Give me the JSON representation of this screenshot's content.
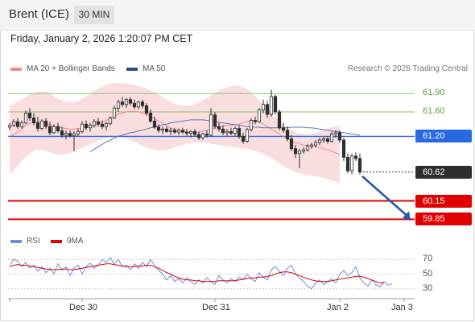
{
  "header": {
    "instrument": "Brent (ICE)",
    "timeframe": "30 MIN"
  },
  "datetime": "Friday, January 2, 2026 1:20:07 PM CET",
  "legend": {
    "bb_label": "MA 20 + Bollinger Bands",
    "ma50_label": "MA 50",
    "copyright": "Research © 2026 Trading Central"
  },
  "colors": {
    "bb_band": "#fadadb",
    "ma20": "#f08a8a",
    "ma50": "#5b78b6",
    "candle": "#2f2f2f",
    "green_level": "#8cc26a",
    "blue_level": "#2a6ae0",
    "red_level": "#e00000",
    "current": "#2e2e2e",
    "arrow": "#2a56a8",
    "rsi": "#6b8fdc",
    "rsi_ma": "#e00000"
  },
  "levels": [
    {
      "name": "level-61-90",
      "value": 61.9,
      "label": "61.90",
      "kind": "green"
    },
    {
      "name": "level-61-60",
      "value": 61.6,
      "label": "61.60",
      "kind": "green"
    },
    {
      "name": "level-61-20",
      "value": 61.2,
      "label": "61.20",
      "kind": "blue"
    },
    {
      "name": "level-60-62",
      "value": 60.62,
      "label": "60.62",
      "kind": "current"
    },
    {
      "name": "level-60-15",
      "value": 60.15,
      "label": "60.15",
      "kind": "red"
    },
    {
      "name": "level-59-85",
      "value": 59.85,
      "label": "59.85",
      "kind": "red"
    }
  ],
  "rsi_panel": {
    "rsi_label": "RSI",
    "ma_label": "9MA",
    "ticks": [
      {
        "label": "70",
        "value": 70
      },
      {
        "label": "50",
        "value": 50
      },
      {
        "label": "30",
        "value": 30
      }
    ]
  },
  "x_axis": {
    "labels": [
      {
        "label": "Dec 30",
        "index": 18
      },
      {
        "label": "Dec 31",
        "index": 51
      },
      {
        "label": "Jan 2",
        "index": 82
      },
      {
        "label": "Jan 3",
        "index": 98
      }
    ]
  },
  "chart_data": {
    "type": "candlestick",
    "title": "",
    "ylim": [
      59.75,
      62.15
    ],
    "rsi_ylim": [
      20,
      80
    ],
    "candles": [
      [
        61.35,
        61.42,
        61.3,
        61.38
      ],
      [
        61.38,
        61.48,
        61.35,
        61.44
      ],
      [
        61.44,
        61.5,
        61.32,
        61.36
      ],
      [
        61.36,
        61.46,
        61.33,
        61.42
      ],
      [
        61.42,
        61.62,
        61.4,
        61.58
      ],
      [
        61.58,
        61.66,
        61.45,
        61.5
      ],
      [
        61.5,
        61.58,
        61.38,
        61.42
      ],
      [
        61.42,
        61.52,
        61.28,
        61.33
      ],
      [
        61.33,
        61.48,
        61.3,
        61.45
      ],
      [
        61.45,
        61.5,
        61.32,
        61.36
      ],
      [
        61.36,
        61.44,
        61.22,
        61.26
      ],
      [
        61.26,
        61.4,
        61.24,
        61.36
      ],
      [
        61.36,
        61.42,
        61.26,
        61.29
      ],
      [
        61.29,
        61.36,
        61.18,
        61.22
      ],
      [
        61.22,
        61.3,
        61.15,
        61.25
      ],
      [
        61.25,
        61.3,
        61.18,
        61.21
      ],
      [
        61.21,
        61.28,
        60.96,
        61.24
      ],
      [
        61.24,
        61.32,
        61.2,
        61.28
      ],
      [
        61.28,
        61.45,
        61.25,
        61.4
      ],
      [
        61.4,
        61.46,
        61.3,
        61.34
      ],
      [
        61.34,
        61.42,
        61.28,
        61.38
      ],
      [
        61.38,
        61.48,
        61.34,
        61.44
      ],
      [
        61.44,
        61.5,
        61.36,
        61.4
      ],
      [
        61.4,
        61.46,
        61.32,
        61.36
      ],
      [
        61.36,
        61.44,
        61.3,
        61.41
      ],
      [
        61.41,
        61.52,
        61.38,
        61.5
      ],
      [
        61.5,
        61.7,
        61.48,
        61.66
      ],
      [
        61.66,
        61.8,
        61.6,
        61.76
      ],
      [
        61.76,
        61.84,
        61.68,
        61.72
      ],
      [
        61.72,
        61.82,
        61.66,
        61.8
      ],
      [
        61.8,
        61.84,
        61.7,
        61.74
      ],
      [
        61.74,
        61.8,
        61.64,
        61.68
      ],
      [
        61.68,
        61.78,
        61.64,
        61.76
      ],
      [
        61.76,
        61.8,
        61.66,
        61.7
      ],
      [
        61.7,
        61.74,
        61.54,
        61.58
      ],
      [
        61.58,
        61.64,
        61.42,
        61.45
      ],
      [
        61.45,
        61.52,
        61.32,
        61.35
      ],
      [
        61.35,
        61.4,
        61.26,
        61.3
      ],
      [
        61.3,
        61.36,
        61.24,
        61.32
      ],
      [
        61.32,
        61.36,
        61.26,
        61.28
      ],
      [
        61.28,
        61.34,
        61.22,
        61.3
      ],
      [
        61.3,
        61.34,
        61.24,
        61.27
      ],
      [
        61.27,
        61.33,
        61.22,
        61.3
      ],
      [
        61.3,
        61.34,
        61.24,
        61.27
      ],
      [
        61.27,
        61.32,
        61.2,
        61.25
      ],
      [
        61.25,
        61.3,
        61.18,
        61.28
      ],
      [
        61.28,
        61.32,
        61.2,
        61.23
      ],
      [
        61.23,
        61.28,
        61.14,
        61.18
      ],
      [
        61.18,
        61.26,
        61.14,
        61.24
      ],
      [
        61.24,
        61.3,
        61.18,
        61.22
      ],
      [
        61.22,
        61.66,
        61.2,
        61.55
      ],
      [
        61.55,
        61.6,
        61.32,
        61.36
      ],
      [
        61.36,
        61.42,
        61.28,
        61.32
      ],
      [
        61.32,
        61.38,
        61.22,
        61.26
      ],
      [
        61.26,
        61.32,
        61.2,
        61.28
      ],
      [
        61.28,
        61.34,
        61.22,
        61.25
      ],
      [
        61.25,
        61.36,
        61.2,
        61.33
      ],
      [
        61.33,
        61.37,
        61.16,
        61.2
      ],
      [
        61.2,
        61.26,
        61.08,
        61.12
      ],
      [
        61.12,
        61.34,
        61.1,
        61.31
      ],
      [
        61.31,
        61.5,
        61.28,
        61.46
      ],
      [
        61.46,
        61.52,
        61.4,
        61.44
      ],
      [
        61.44,
        61.66,
        61.42,
        61.63
      ],
      [
        61.63,
        61.8,
        61.58,
        61.72
      ],
      [
        61.72,
        61.78,
        61.5,
        61.56
      ],
      [
        61.56,
        61.96,
        61.52,
        61.85
      ],
      [
        61.85,
        61.88,
        61.55,
        61.6
      ],
      [
        61.6,
        61.64,
        61.3,
        61.34
      ],
      [
        61.34,
        61.42,
        61.26,
        61.3
      ],
      [
        61.3,
        61.36,
        61.12,
        61.16
      ],
      [
        61.16,
        61.22,
        60.96,
        61.0
      ],
      [
        61.0,
        61.06,
        60.85,
        60.92
      ],
      [
        60.92,
        61.0,
        60.68,
        60.96
      ],
      [
        60.96,
        61.02,
        60.92,
        60.98
      ],
      [
        60.98,
        61.08,
        60.95,
        61.04
      ],
      [
        61.04,
        61.1,
        61.0,
        61.06
      ],
      [
        61.06,
        61.14,
        61.02,
        61.1
      ],
      [
        61.1,
        61.18,
        61.06,
        61.14
      ],
      [
        61.14,
        61.2,
        61.1,
        61.16
      ],
      [
        61.16,
        61.2,
        61.08,
        61.12
      ],
      [
        61.12,
        61.28,
        61.1,
        61.24
      ],
      [
        61.24,
        61.3,
        61.18,
        61.26
      ],
      [
        61.26,
        61.3,
        61.1,
        61.14
      ],
      [
        61.14,
        61.18,
        60.8,
        60.86
      ],
      [
        60.86,
        60.92,
        60.6,
        60.64
      ],
      [
        60.64,
        60.92,
        60.58,
        60.88
      ],
      [
        60.88,
        60.94,
        60.8,
        60.84
      ],
      [
        60.84,
        60.92,
        60.58,
        60.62
      ]
    ],
    "ma20": [
      61.2,
      61.23,
      61.27,
      61.32,
      61.38,
      61.41,
      61.43,
      61.44,
      61.43,
      61.41,
      61.39,
      61.37,
      61.35,
      61.34,
      61.33,
      61.32,
      61.32,
      61.33,
      61.33,
      61.34,
      61.36,
      61.38,
      61.4,
      61.43,
      61.46,
      61.5,
      61.53,
      61.56,
      61.58,
      61.6,
      61.61,
      61.61,
      61.6,
      61.58,
      61.56,
      61.53,
      61.49,
      61.45,
      61.41,
      61.37,
      61.34,
      61.31,
      61.29,
      61.28,
      61.27,
      61.26,
      61.26,
      61.27,
      61.28,
      61.3,
      61.32,
      61.34,
      61.36,
      61.37,
      61.38,
      61.38,
      61.39,
      61.4,
      61.42,
      61.44,
      61.46,
      61.46,
      61.44,
      61.4,
      61.36,
      61.32,
      61.28,
      61.24,
      61.2,
      61.16,
      61.13,
      61.1,
      61.08,
      61.06,
      61.05,
      61.04,
      61.03,
      61.02,
      61.0,
      60.98,
      60.96,
      60.93,
      60.91
    ],
    "bb_upper": [
      61.7,
      61.73,
      61.76,
      61.8,
      61.84,
      61.88,
      61.91,
      61.93,
      61.93,
      61.92,
      61.89,
      61.86,
      61.82,
      61.79,
      61.77,
      61.76,
      61.76,
      61.78,
      61.81,
      61.85,
      61.89,
      61.94,
      61.98,
      62.01,
      62.04,
      62.06,
      62.07,
      62.07,
      62.07,
      62.06,
      62.05,
      62.04,
      62.02,
      62.0,
      61.98,
      61.95,
      61.92,
      61.88,
      61.84,
      61.8,
      61.76,
      61.73,
      61.71,
      61.7,
      61.7,
      61.71,
      61.73,
      61.76,
      61.79,
      61.83,
      61.87,
      61.91,
      61.95,
      61.98,
      62.0,
      62.02,
      62.03,
      62.02,
      62.0,
      61.97,
      61.92,
      61.86,
      61.79,
      61.72,
      61.65,
      61.58,
      61.51,
      61.45,
      61.39,
      61.34,
      61.3,
      61.27,
      61.25,
      61.24,
      61.24,
      61.25,
      61.26,
      61.28,
      61.31,
      61.33,
      61.35,
      61.36,
      61.37
    ],
    "bb_lower": [
      60.6,
      60.65,
      60.72,
      60.8,
      60.86,
      60.92,
      60.96,
      60.98,
      60.98,
      60.96,
      60.94,
      60.92,
      60.9,
      60.9,
      60.91,
      60.93,
      60.95,
      60.98,
      61.01,
      61.04,
      61.07,
      61.1,
      61.13,
      61.15,
      61.17,
      61.18,
      61.19,
      61.19,
      61.18,
      61.16,
      61.14,
      61.11,
      61.08,
      61.05,
      61.02,
      61.0,
      60.98,
      60.97,
      60.97,
      60.98,
      61.0,
      61.02,
      61.04,
      61.06,
      61.08,
      61.09,
      61.1,
      61.1,
      61.1,
      61.09,
      61.08,
      61.07,
      61.06,
      61.05,
      61.04,
      61.03,
      61.02,
      61.01,
      61.0,
      60.99,
      60.98,
      60.96,
      60.94,
      60.91,
      60.88,
      60.84,
      60.8,
      60.76,
      60.72,
      60.68,
      60.65,
      60.62,
      60.6,
      60.58,
      60.57,
      60.56,
      60.55,
      60.54,
      60.52,
      60.5,
      60.48,
      60.46,
      60.44
    ],
    "ma50": [
      60.95,
      60.99,
      61.03,
      61.07,
      61.11,
      61.14,
      61.17,
      61.2,
      61.22,
      61.24,
      61.26,
      61.27,
      61.29,
      61.3,
      61.32,
      61.34,
      61.35,
      61.37,
      61.39,
      61.4,
      61.42,
      61.43,
      61.44,
      61.45,
      61.46,
      61.47,
      61.47,
      61.47,
      61.47,
      61.46,
      61.45,
      61.44,
      61.43,
      61.42,
      61.41,
      61.4,
      61.39,
      61.38,
      61.37,
      61.36,
      61.36,
      61.35,
      61.35,
      61.34,
      61.34,
      61.34,
      61.34,
      61.34,
      61.34,
      61.34,
      61.35,
      61.35,
      61.35,
      61.35,
      61.34,
      61.34,
      61.33,
      61.32,
      61.31,
      61.3,
      61.29,
      61.28,
      61.27,
      61.26,
      61.25,
      61.24,
      61.23,
      61.22
    ],
    "rsi": [
      62,
      70,
      68,
      60,
      66,
      58,
      62,
      54,
      60,
      52,
      58,
      50,
      64,
      55,
      60,
      48,
      58,
      62,
      50,
      60,
      65,
      58,
      62,
      70,
      66,
      72,
      64,
      70,
      60,
      62,
      56,
      64,
      58,
      66,
      60,
      70,
      62,
      55,
      50,
      42,
      48,
      40,
      44,
      38,
      45,
      40,
      36,
      42,
      38,
      45,
      40,
      36,
      48,
      42,
      38,
      44,
      40,
      46,
      42,
      50,
      44,
      40,
      52,
      46,
      42,
      56,
      60,
      54,
      48,
      58,
      62,
      50,
      45,
      40,
      34,
      30,
      38,
      42,
      36,
      40,
      44,
      38,
      50,
      55,
      48,
      52,
      60,
      45,
      38,
      34,
      42,
      36,
      33,
      40,
      35,
      37
    ],
    "rsi_ma": [
      60,
      62,
      63,
      62,
      62,
      61,
      60,
      59,
      58,
      57,
      56,
      56,
      56,
      57,
      57,
      56,
      56,
      57,
      58,
      59,
      60,
      61,
      62,
      63,
      64,
      64,
      63,
      62,
      61,
      60,
      60,
      60,
      61,
      61,
      62,
      62,
      60,
      58,
      55,
      52,
      50,
      47,
      45,
      43,
      42,
      42,
      41,
      41,
      40,
      40,
      40,
      40,
      41,
      41,
      41,
      41,
      41,
      42,
      43,
      44,
      45,
      45,
      46,
      46,
      47,
      48,
      50,
      52,
      53,
      53,
      52,
      50,
      48,
      46,
      44,
      42,
      41,
      40,
      40,
      40,
      41,
      42,
      43,
      44,
      45,
      46,
      47,
      47,
      46,
      44,
      42,
      40,
      38,
      38
    ]
  }
}
